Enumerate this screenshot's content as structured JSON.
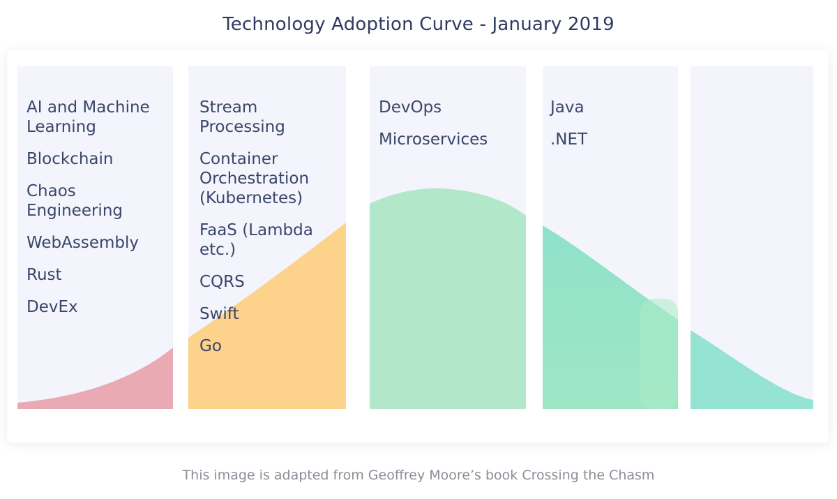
{
  "title": "Technology Adoption Curve - January 2019",
  "caption": "This image is adapted from Geoffrey Moore’s book Crossing the Chasm",
  "colors": {
    "panel": "#f4f5fc",
    "innovators": "#e9aab3",
    "early_adopters": "#fdd28a",
    "early_majority": "#b2e8c9",
    "late_majority_top": "#8fe2ca",
    "late_majority_bottom": "#a6e8c4",
    "laggards": "#95e3d2",
    "text": "#3a4569"
  },
  "columns": [
    {
      "id": "innovators",
      "items": [
        "AI and Machine Learning",
        "Blockchain",
        "Chaos Engineering",
        "WebAssembly",
        "Rust",
        "DevEx"
      ]
    },
    {
      "id": "early-adopters",
      "items": [
        "Stream Processing",
        "Container Orchestration (Kubernetes)",
        "FaaS (Lambda etc.)",
        "CQRS",
        "Swift",
        "Go"
      ]
    },
    {
      "id": "early-majority",
      "items": [
        "DevOps",
        "Microservices"
      ]
    },
    {
      "id": "late-majority",
      "items": [
        "Java",
        ".NET"
      ]
    },
    {
      "id": "laggards",
      "items": []
    }
  ]
}
